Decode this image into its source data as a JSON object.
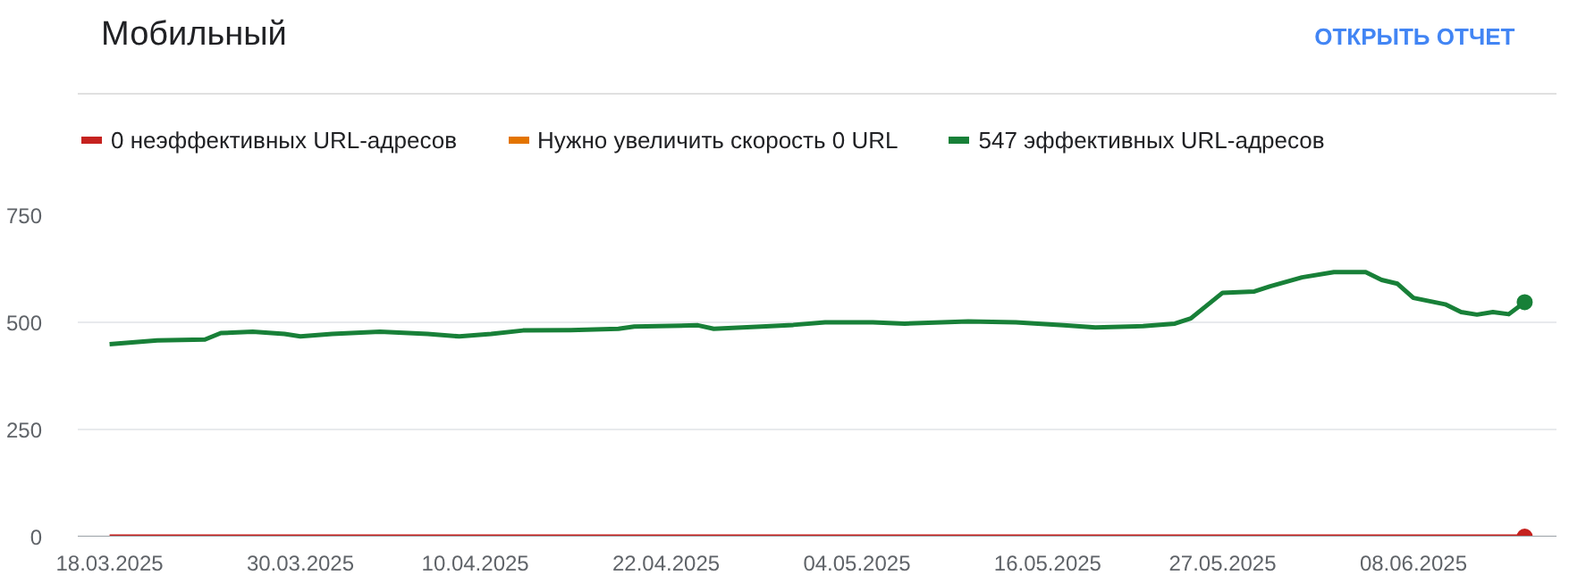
{
  "chart_data": {
    "type": "line",
    "title": "Мобильный",
    "annotations": [
      "ОТКРЫТЬ ОТЧЕТ"
    ],
    "series": [
      {
        "name": "0 неэффективных URL-адресов",
        "color": "#c5221f",
        "x": [
          "2025-03-18",
          "2025-06-15"
        ],
        "values": [
          0,
          0
        ]
      },
      {
        "name": "Нужно увеличить скорость 0 URL",
        "color": "#e37400"
      },
      {
        "name": "547 эффективных URL-адресов",
        "color": "#188038",
        "x": [
          "2025-03-18",
          "2025-03-21",
          "2025-03-24",
          "2025-03-25",
          "2025-03-27",
          "2025-03-29",
          "2025-03-30",
          "2025-04-01",
          "2025-04-04",
          "2025-04-07",
          "2025-04-09",
          "2025-04-11",
          "2025-04-13",
          "2025-04-16",
          "2025-04-19",
          "2025-04-20",
          "2025-04-24",
          "2025-04-25",
          "2025-04-28",
          "2025-04-30",
          "2025-05-02",
          "2025-05-05",
          "2025-05-07",
          "2025-05-11",
          "2025-05-14",
          "2025-05-17",
          "2025-05-19",
          "2025-05-22",
          "2025-05-24",
          "2025-05-25",
          "2025-05-27",
          "2025-05-29",
          "2025-05-30",
          "2025-06-01",
          "2025-06-03",
          "2025-06-05",
          "2025-06-06",
          "2025-06-07",
          "2025-06-08",
          "2025-06-10",
          "2025-06-11",
          "2025-06-12",
          "2025-06-13",
          "2025-06-14",
          "2025-06-15"
        ],
        "values": [
          449,
          458,
          460,
          475,
          478,
          473,
          467,
          473,
          478,
          473,
          467,
          473,
          481,
          482,
          485,
          490,
          493,
          485,
          490,
          494,
          500,
          500,
          497,
          502,
          500,
          493,
          488,
          491,
          497,
          509,
          569,
          572,
          584,
          605,
          617,
          617,
          599,
          590,
          557,
          542,
          524,
          518,
          524,
          519,
          547
        ]
      }
    ],
    "xlim": [
      "2025-03-16",
      "2025-06-17"
    ],
    "xticks": [
      {
        "value": "2025-03-18",
        "label": "18.03.2025"
      },
      {
        "value": "2025-03-30",
        "label": "30.03.2025"
      },
      {
        "value": "2025-04-10",
        "label": "10.04.2025"
      },
      {
        "value": "2025-04-22",
        "label": "22.04.2025"
      },
      {
        "value": "2025-05-04",
        "label": "04.05.2025"
      },
      {
        "value": "2025-05-16",
        "label": "16.05.2025"
      },
      {
        "value": "2025-05-27",
        "label": "27.05.2025"
      },
      {
        "value": "2025-06-08",
        "label": "08.06.2025"
      }
    ],
    "ylim": [
      0,
      750
    ],
    "yticks": [
      0,
      250,
      500,
      750
    ],
    "grid": "y",
    "legend": "top"
  }
}
